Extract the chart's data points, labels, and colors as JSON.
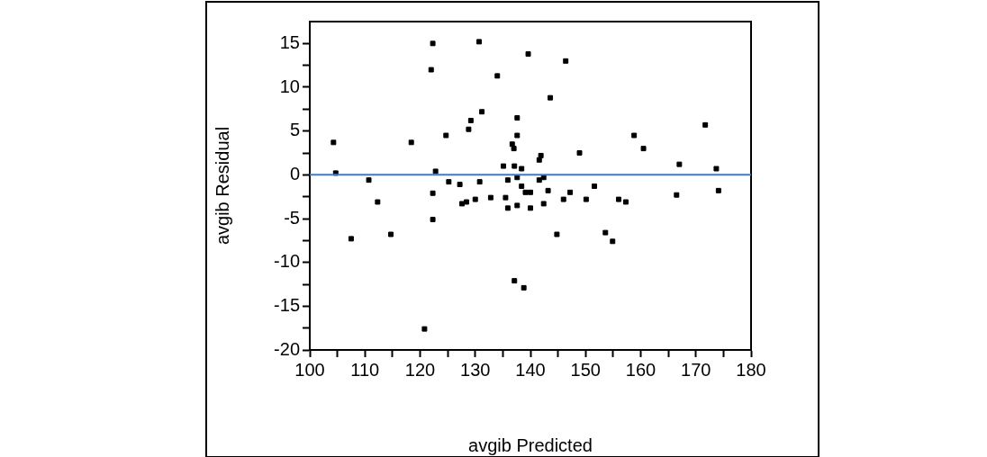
{
  "chart_data": {
    "type": "scatter",
    "xlabel": "avgib Predicted",
    "ylabel": "avgib Residual",
    "x": [
      104.3,
      104.7,
      107.5,
      110.7,
      112.3,
      114.7,
      118.4,
      120.8,
      122.0,
      122.3,
      122.3,
      122.3,
      122.8,
      124.7,
      125.2,
      127.2,
      127.6,
      128.4,
      128.8,
      129.2,
      130.0,
      130.7,
      130.8,
      131.2,
      132.8,
      134.0,
      135.1,
      135.5,
      135.9,
      135.9,
      136.7,
      137.0,
      137.1,
      137.1,
      137.6,
      137.6,
      137.6,
      137.6,
      138.4,
      138.4,
      138.8,
      139.1,
      139.6,
      140.0,
      140.0,
      141.6,
      141.9,
      141.6,
      142.4,
      142.4,
      143.2,
      143.6,
      144.8,
      146.0,
      146.4,
      147.2,
      148.9,
      150.1,
      151.6,
      153.6,
      154.9,
      156.0,
      157.3,
      158.8,
      160.5,
      166.5,
      167.0,
      171.7,
      173.7,
      174.1
    ],
    "values": [
      3.7,
      0.2,
      -7.3,
      -0.6,
      -3.1,
      -6.8,
      3.7,
      -17.6,
      12.0,
      15.0,
      -2.1,
      -5.1,
      0.4,
      4.5,
      -0.8,
      -1.1,
      -3.3,
      -3.1,
      5.2,
      6.2,
      -2.8,
      15.2,
      -0.8,
      7.2,
      -2.6,
      11.3,
      1.0,
      -2.6,
      -0.6,
      -3.8,
      3.5,
      3.0,
      1.0,
      -12.1,
      6.5,
      4.5,
      -0.3,
      -3.5,
      0.7,
      -1.3,
      -12.9,
      -2.0,
      13.8,
      -2.0,
      -3.8,
      1.7,
      2.2,
      -0.6,
      -0.3,
      -3.3,
      -1.8,
      8.8,
      -6.8,
      -2.8,
      13.0,
      -2.0,
      2.5,
      -2.8,
      -1.3,
      -6.6,
      -7.6,
      -2.8,
      -3.1,
      4.5,
      3.0,
      -2.3,
      1.2,
      5.7,
      0.7,
      -1.8
    ],
    "color": "#000000",
    "marker": "square",
    "grid": false,
    "legend": false,
    "xlim": [
      100,
      180
    ],
    "ylim": [
      -20,
      17.5
    ],
    "xticks": [
      100,
      {
        "value": 105,
        "label": null
      },
      110,
      {
        "value": 115,
        "label": null
      },
      120,
      {
        "value": 125,
        "label": null
      },
      130,
      {
        "value": 135,
        "label": null
      },
      140,
      {
        "value": 145,
        "label": null
      },
      150,
      {
        "value": 155,
        "label": null
      },
      160,
      {
        "value": 165,
        "label": null
      },
      170,
      {
        "value": 175,
        "label": null
      },
      180
    ],
    "yticks": [
      -20,
      {
        "value": -17.5,
        "label": null
      },
      -15,
      {
        "value": -12.5,
        "label": null
      },
      -10,
      {
        "value": -7.5,
        "label": null
      },
      -5,
      {
        "value": -2.5,
        "label": null
      },
      0,
      {
        "value": 2.5,
        "label": null
      },
      5,
      {
        "value": 7.5,
        "label": null
      },
      10,
      {
        "value": 12.5,
        "label": null
      },
      15
    ],
    "ref_lines": [
      {
        "axis": "y",
        "value": 0,
        "color": "#3a7bd5"
      }
    ]
  }
}
